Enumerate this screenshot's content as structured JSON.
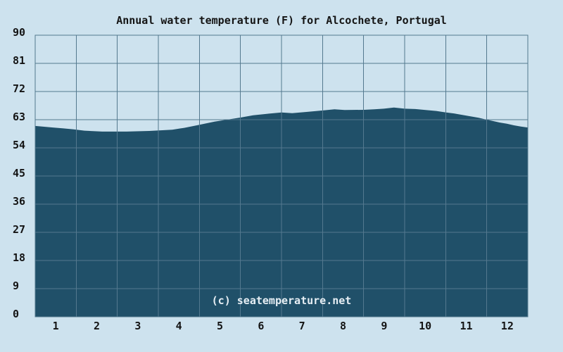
{
  "chart_data": {
    "type": "area",
    "title": "Annual water temperature (F) for Alcochete, Portugal",
    "watermark": "(c) seatemperature.net",
    "xlabel": "",
    "ylabel": "",
    "x_unit": "month",
    "y_unit": "degrees Fahrenheit",
    "xlim": [
      0,
      12
    ],
    "ylim": [
      0,
      90
    ],
    "grid": true,
    "legend": "none",
    "x_tick_labels": [
      "1",
      "2",
      "3",
      "4",
      "5",
      "6",
      "7",
      "8",
      "9",
      "10",
      "11",
      "12"
    ],
    "y_tick_labels": [
      "90",
      "81",
      "72",
      "63",
      "54",
      "45",
      "36",
      "27",
      "18",
      "9",
      "0"
    ],
    "series": [
      {
        "name": "Water temperature (F)",
        "x": [
          0.0,
          0.17,
          0.43,
          0.69,
          0.94,
          1.2,
          1.63,
          2.23,
          2.78,
          3.34,
          3.63,
          3.94,
          4.37,
          4.71,
          5.01,
          5.31,
          5.66,
          6.0,
          6.26,
          6.63,
          7.03,
          7.29,
          7.54,
          8.0,
          8.26,
          8.49,
          8.74,
          9.0,
          9.26,
          9.51,
          9.77,
          10.01,
          10.2,
          10.37,
          10.59,
          10.8,
          10.97,
          11.14,
          11.31,
          11.49,
          11.66,
          11.83,
          12.0
        ],
        "y": [
          61.0,
          60.8,
          60.5,
          60.2,
          59.9,
          59.5,
          59.2,
          59.2,
          59.4,
          59.8,
          60.4,
          61.2,
          62.4,
          63.1,
          63.7,
          64.4,
          64.9,
          65.3,
          65.1,
          65.5,
          66.0,
          66.3,
          66.1,
          66.15,
          66.3,
          66.5,
          66.9,
          66.5,
          66.4,
          66.1,
          65.8,
          65.3,
          65.0,
          64.6,
          64.1,
          63.6,
          63.1,
          62.6,
          62.1,
          61.7,
          61.2,
          60.8,
          60.5
        ]
      }
    ],
    "monthly_values": {
      "months": [
        "1",
        "2",
        "3",
        "4",
        "5",
        "6",
        "7",
        "8",
        "9",
        "10",
        "11",
        "12"
      ],
      "temps_f": [
        60.4,
        59.3,
        59.3,
        60.1,
        62.7,
        64.7,
        65.4,
        66.1,
        66.5,
        66.1,
        64.4,
        61.7
      ]
    },
    "colors": {
      "background": "#cde2ee",
      "area_fill": "#205069",
      "grid": "#54798f",
      "border": "#54798f",
      "title_text": "#141414",
      "tick_text": "#141414",
      "watermark_text": "#e6eef4"
    }
  }
}
